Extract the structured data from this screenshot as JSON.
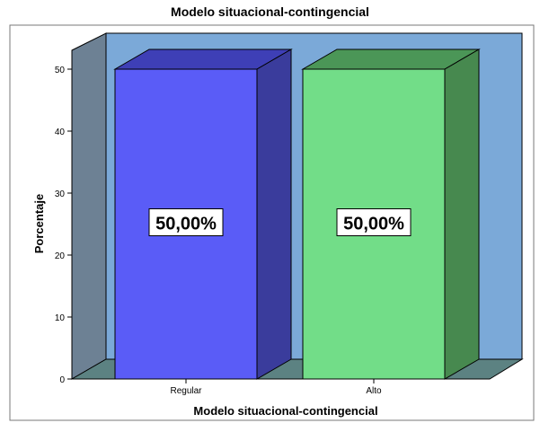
{
  "chart_data": {
    "type": "bar",
    "title": "Modelo situacional-contingencial",
    "xlabel": "Modelo situacional-contingencial",
    "ylabel": "Porcentaje",
    "categories": [
      "Regular",
      "Alto"
    ],
    "values": [
      50,
      50
    ],
    "data_labels": [
      "50,00%",
      "50,00%"
    ],
    "ylim": [
      0,
      50
    ],
    "yticks": [
      "0",
      "10",
      "20",
      "30",
      "40",
      "50"
    ],
    "style": "3d",
    "colors": {
      "bar_front": [
        "#5a5cf7",
        "#72dd88"
      ],
      "bar_side": [
        "#3a3c9c",
        "#47894f"
      ],
      "bar_top": [
        "#3e3fb6",
        "#4b9657"
      ],
      "back_wall": "#7ba9d8",
      "left_wall": "#6d8194",
      "floor": "#5c8282",
      "frame_border": "#7a7a7a"
    }
  }
}
